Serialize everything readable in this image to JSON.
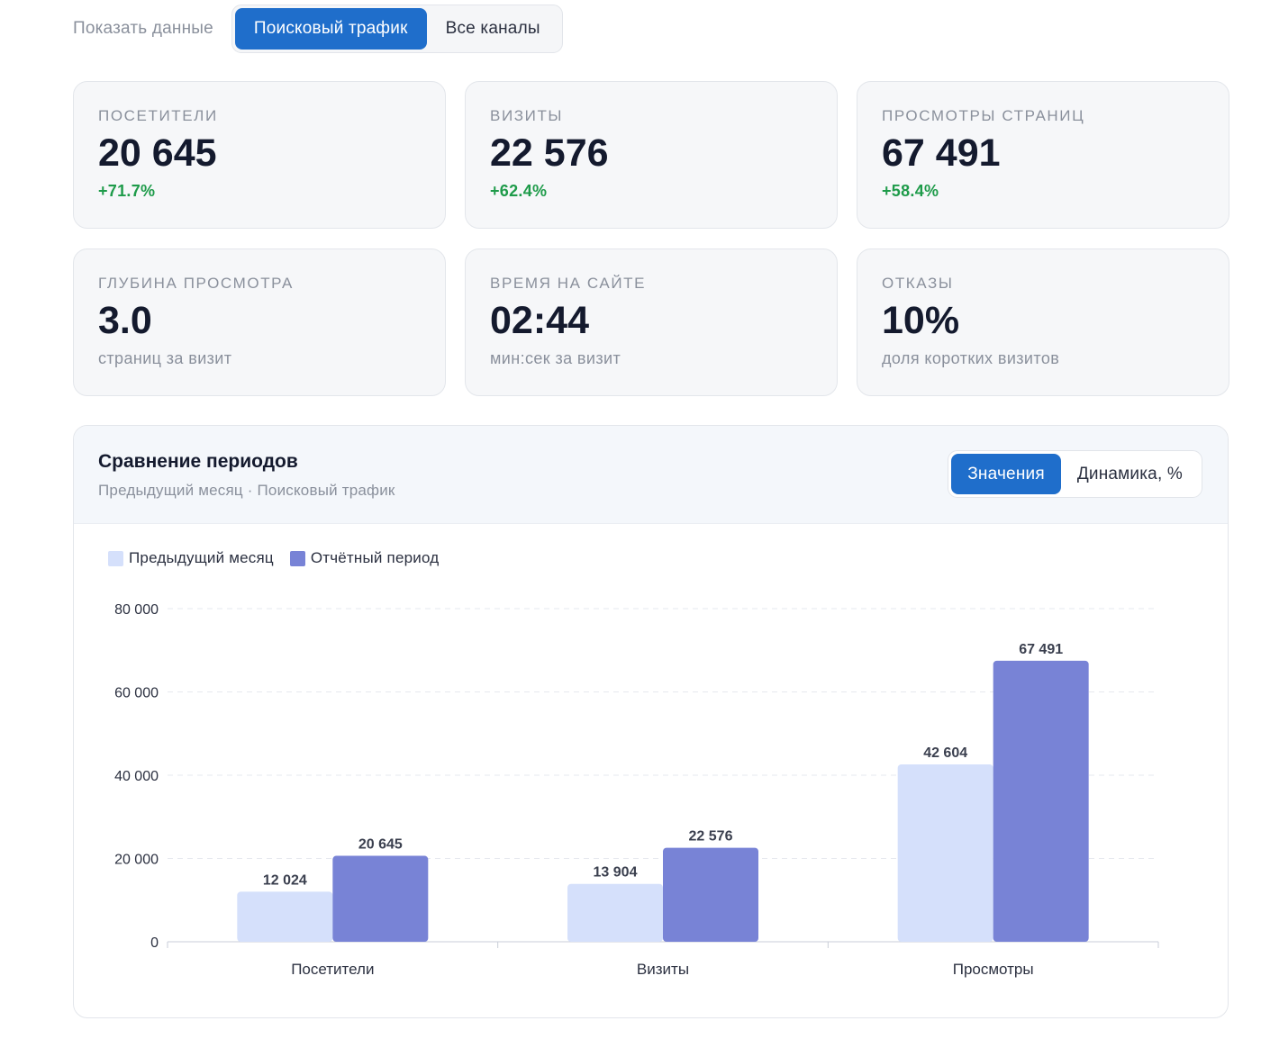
{
  "filter": {
    "label": "Показать данные",
    "options": [
      "Поисковый трафик",
      "Все каналы"
    ],
    "active": 0
  },
  "cards": [
    {
      "label": "ПОСЕТИТЕЛИ",
      "value": "20 645",
      "sub": "+71.7%",
      "kind": "up"
    },
    {
      "label": "ВИЗИТЫ",
      "value": "22 576",
      "sub": "+62.4%",
      "kind": "up"
    },
    {
      "label": "ПРОСМОТРЫ СТРАНИЦ",
      "value": "67 491",
      "sub": "+58.4%",
      "kind": "up"
    },
    {
      "label": "ГЛУБИНА ПРОСМОТРА",
      "value": "3.0",
      "sub": "страниц за визит",
      "kind": "muted"
    },
    {
      "label": "ВРЕМЯ НА САЙТЕ",
      "value": "02:44",
      "sub": "мин:сек за визит",
      "kind": "muted"
    },
    {
      "label": "ОТКАЗЫ",
      "value": "10%",
      "sub": "доля коротких визитов",
      "kind": "muted"
    }
  ],
  "panel": {
    "title": "Сравнение периодов",
    "subtitle": "Предыдущий месяц · Поисковый трафик",
    "toggle": [
      "Значения",
      "Динамика, %"
    ],
    "toggle_active": 0
  },
  "colors": {
    "accent": "#1f6ecb",
    "positive": "#1e9b4a",
    "series_previous": "#d5e0fb",
    "series_current": "#7883d6"
  },
  "chart_data": {
    "type": "bar",
    "categories": [
      "Посетители",
      "Визиты",
      "Просмотры"
    ],
    "series": [
      {
        "name": "Предыдущий месяц",
        "values": [
          12024,
          13904,
          42604
        ],
        "labels": [
          "12 024",
          "13 904",
          "42 604"
        ]
      },
      {
        "name": "Отчётный период",
        "values": [
          20645,
          22576,
          67491
        ],
        "labels": [
          "20 645",
          "22 576",
          "67 491"
        ]
      }
    ],
    "ylim": [
      0,
      80000
    ],
    "yticks": [
      0,
      20000,
      40000,
      60000,
      80000
    ],
    "ytick_labels": [
      "0",
      "20 000",
      "40 000",
      "60 000",
      "80 000"
    ],
    "grid": true,
    "legend": "top-left"
  }
}
